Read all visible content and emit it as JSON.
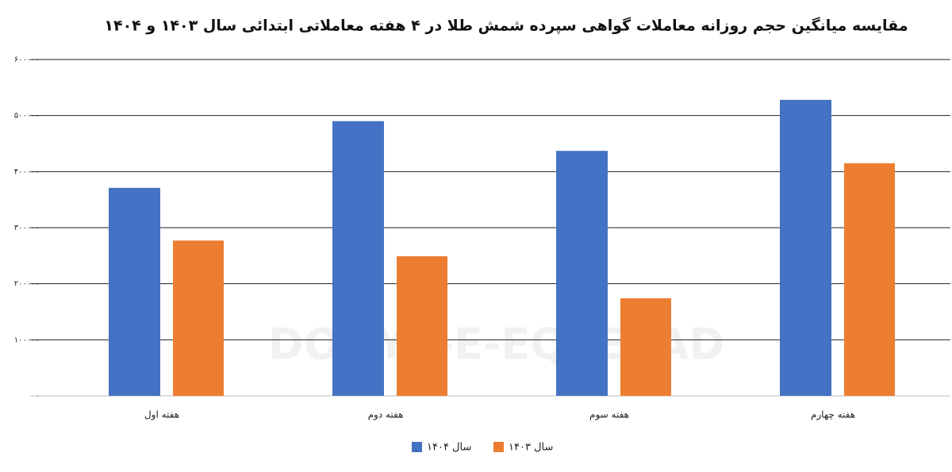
{
  "chart_data": {
    "type": "bar",
    "title": "مقایسه میانگین حجم روزانه معاملات گواهی سپرده شمش طلا در ۴ هفته معاملاتی ابتدائی سال ۱۴۰۳ و ۱۴۰۴",
    "watermark": "DONYA-E-EQTESAD",
    "categories": [
      "هفته اول",
      "هفته دوم",
      "هفته سوم",
      "هفته چهارم"
    ],
    "series": [
      {
        "name": "سال ۱۴۰۴",
        "color": "#4472c4",
        "values": [
          371000,
          490000,
          437000,
          528000
        ]
      },
      {
        "name": "سال ۱۴۰۳",
        "color": "#ed7d31",
        "values": [
          277000,
          249000,
          174000,
          415000
        ]
      }
    ],
    "ylim": [
      0,
      600000
    ],
    "yticks": [
      {
        "value": 0,
        "label": "۰"
      },
      {
        "value": 100000,
        "label": "۱۰۰۰۰۰"
      },
      {
        "value": 200000,
        "label": "۲۰۰۰۰۰"
      },
      {
        "value": 300000,
        "label": "۳۰۰۰۰۰"
      },
      {
        "value": 400000,
        "label": "۴۰۰۰۰۰"
      },
      {
        "value": 500000,
        "label": "۵۰۰۰۰۰"
      },
      {
        "value": 600000,
        "label": "۶۰۰۰۰۰"
      }
    ],
    "grid": true
  }
}
